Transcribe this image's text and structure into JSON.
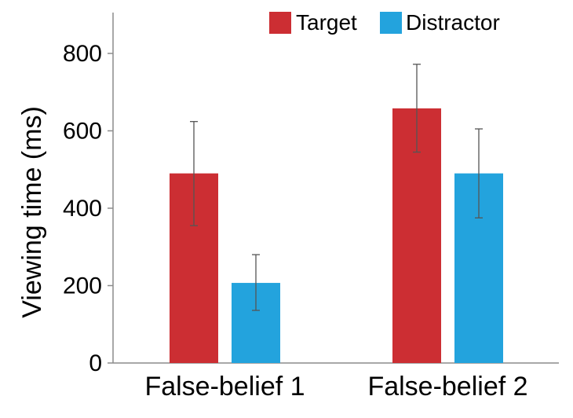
{
  "chart_data": {
    "type": "bar",
    "title": "",
    "xlabel": "",
    "ylabel": "Viewing time (ms)",
    "ylim": [
      0,
      900
    ],
    "yticks": [
      0,
      200,
      400,
      600,
      800
    ],
    "categories": [
      "False-belief 1",
      "False-belief 2"
    ],
    "series": [
      {
        "name": "Target",
        "color": "#cc2e33",
        "values": [
          490,
          658
        ],
        "error": [
          [
            355,
            624
          ],
          [
            545,
            772
          ]
        ]
      },
      {
        "name": "Distractor",
        "color": "#23a3dd",
        "values": [
          207,
          490
        ],
        "error": [
          [
            136,
            280
          ],
          [
            375,
            605
          ]
        ]
      }
    ],
    "grid": false,
    "legend_position": "top-right",
    "error_bars": true
  }
}
